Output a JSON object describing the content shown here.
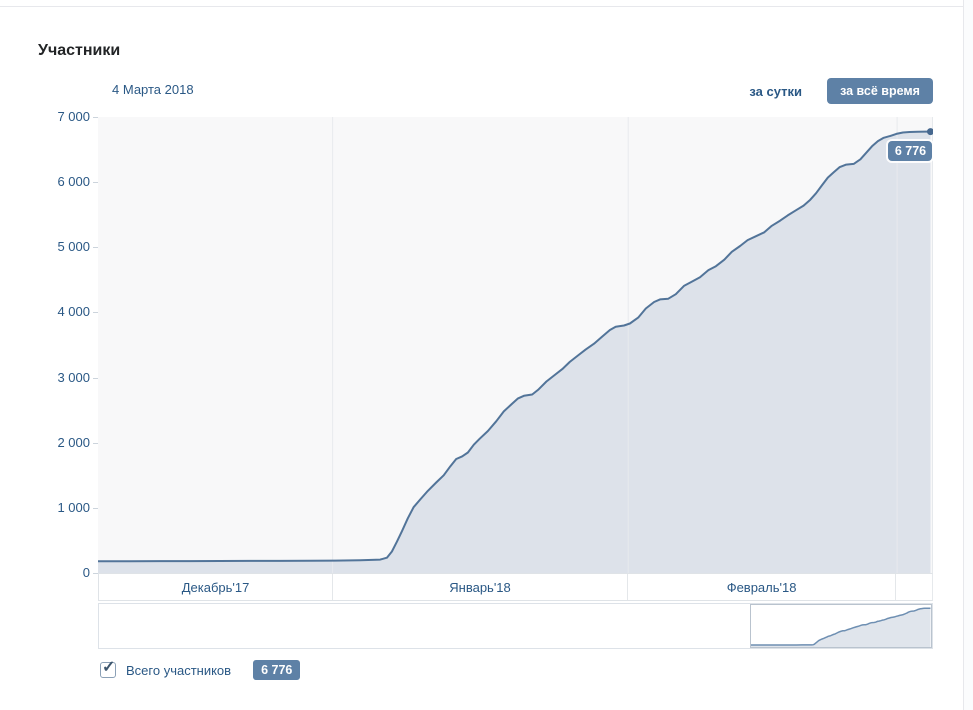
{
  "page": {
    "title": "Участники"
  },
  "header": {
    "date_label": "4 Марта 2018"
  },
  "controls": {
    "day_tab": "за сутки",
    "alltime_tab": "за всё время"
  },
  "tooltip": {
    "value_label": "6 776"
  },
  "legend": {
    "checkbox_checked": true,
    "label": "Всего участников",
    "value_label": "6 776"
  },
  "colors": {
    "accent_blue": "#2a5885",
    "button_bg": "#5e81a6",
    "line": "#527499",
    "area_fill": "#dde2ea",
    "plot_bg": "#f8f8f9",
    "grid": "#ebedf0"
  },
  "chart_data": {
    "type": "area",
    "title": "Участники",
    "series_name": "Всего участников",
    "ylabel": "",
    "xlabel": "",
    "y_max": 7000,
    "y_ticks": [
      0,
      1000,
      2000,
      3000,
      4000,
      5000,
      6000,
      7000
    ],
    "grid": true,
    "months": [
      {
        "label": "Декабрь'17",
        "f0": 0.0,
        "f1": 0.281
      },
      {
        "label": "Январь'18",
        "f0": 0.281,
        "f1": 0.635
      },
      {
        "label": "Февраль'18",
        "f0": 0.635,
        "f1": 0.957
      },
      {
        "label": "",
        "f0": 0.957,
        "f1": 1.0
      }
    ],
    "final_value": 6776,
    "final_date": "4 Марта 2018",
    "minimap_selection": [
      0.781,
      1.0
    ],
    "points": [
      [
        0,
        180
      ],
      [
        0.038,
        181
      ],
      [
        0.074,
        182
      ],
      [
        0.11,
        183
      ],
      [
        0.146,
        184
      ],
      [
        0.182,
        185
      ],
      [
        0.218,
        186
      ],
      [
        0.254,
        188
      ],
      [
        0.284,
        191
      ],
      [
        0.314,
        196
      ],
      [
        0.338,
        205
      ],
      [
        0.346,
        235
      ],
      [
        0.352,
        330
      ],
      [
        0.358,
        480
      ],
      [
        0.364,
        640
      ],
      [
        0.371,
        840
      ],
      [
        0.378,
        1010
      ],
      [
        0.386,
        1130
      ],
      [
        0.395,
        1260
      ],
      [
        0.405,
        1390
      ],
      [
        0.414,
        1500
      ],
      [
        0.422,
        1640
      ],
      [
        0.429,
        1750
      ],
      [
        0.436,
        1790
      ],
      [
        0.443,
        1850
      ],
      [
        0.45,
        1970
      ],
      [
        0.457,
        2060
      ],
      [
        0.467,
        2180
      ],
      [
        0.477,
        2330
      ],
      [
        0.486,
        2480
      ],
      [
        0.496,
        2600
      ],
      [
        0.503,
        2680
      ],
      [
        0.51,
        2720
      ],
      [
        0.52,
        2740
      ],
      [
        0.527,
        2810
      ],
      [
        0.537,
        2940
      ],
      [
        0.546,
        3030
      ],
      [
        0.556,
        3130
      ],
      [
        0.565,
        3240
      ],
      [
        0.575,
        3340
      ],
      [
        0.584,
        3430
      ],
      [
        0.594,
        3520
      ],
      [
        0.604,
        3630
      ],
      [
        0.613,
        3730
      ],
      [
        0.62,
        3780
      ],
      [
        0.63,
        3800
      ],
      [
        0.637,
        3830
      ],
      [
        0.647,
        3920
      ],
      [
        0.656,
        4060
      ],
      [
        0.666,
        4160
      ],
      [
        0.673,
        4200
      ],
      [
        0.683,
        4210
      ],
      [
        0.692,
        4280
      ],
      [
        0.702,
        4410
      ],
      [
        0.711,
        4470
      ],
      [
        0.721,
        4540
      ],
      [
        0.731,
        4650
      ],
      [
        0.74,
        4710
      ],
      [
        0.75,
        4810
      ],
      [
        0.759,
        4930
      ],
      [
        0.769,
        5020
      ],
      [
        0.778,
        5110
      ],
      [
        0.788,
        5170
      ],
      [
        0.798,
        5230
      ],
      [
        0.807,
        5330
      ],
      [
        0.817,
        5410
      ],
      [
        0.826,
        5490
      ],
      [
        0.836,
        5570
      ],
      [
        0.845,
        5640
      ],
      [
        0.853,
        5730
      ],
      [
        0.86,
        5830
      ],
      [
        0.867,
        5950
      ],
      [
        0.874,
        6070
      ],
      [
        0.881,
        6150
      ],
      [
        0.888,
        6230
      ],
      [
        0.896,
        6270
      ],
      [
        0.905,
        6280
      ],
      [
        0.913,
        6350
      ],
      [
        0.92,
        6450
      ],
      [
        0.927,
        6550
      ],
      [
        0.934,
        6630
      ],
      [
        0.941,
        6680
      ],
      [
        0.949,
        6710
      ],
      [
        0.956,
        6740
      ],
      [
        0.964,
        6762
      ],
      [
        0.972,
        6770
      ],
      [
        0.982,
        6774
      ],
      [
        0.991,
        6776
      ],
      [
        0.997,
        6776
      ]
    ]
  }
}
